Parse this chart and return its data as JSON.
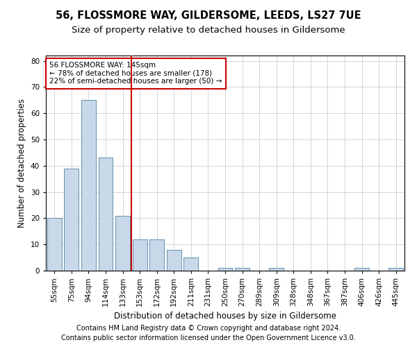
{
  "title": "56, FLOSSMORE WAY, GILDERSOME, LEEDS, LS27 7UE",
  "subtitle": "Size of property relative to detached houses in Gildersome",
  "xlabel": "Distribution of detached houses by size in Gildersome",
  "ylabel": "Number of detached properties",
  "categories": [
    "55sqm",
    "75sqm",
    "94sqm",
    "114sqm",
    "133sqm",
    "153sqm",
    "172sqm",
    "192sqm",
    "211sqm",
    "231sqm",
    "250sqm",
    "270sqm",
    "289sqm",
    "309sqm",
    "328sqm",
    "348sqm",
    "367sqm",
    "387sqm",
    "406sqm",
    "426sqm",
    "445sqm"
  ],
  "values": [
    20,
    39,
    65,
    43,
    21,
    12,
    12,
    8,
    5,
    0,
    1,
    1,
    0,
    1,
    0,
    0,
    0,
    0,
    1,
    0,
    1
  ],
  "bar_color": "#c8d8e8",
  "bar_edge_color": "#6090b0",
  "vline_x_index": 4.5,
  "vline_color": "#cc0000",
  "ylim": [
    0,
    82
  ],
  "yticks": [
    0,
    10,
    20,
    30,
    40,
    50,
    60,
    70,
    80
  ],
  "annotation_line1": "56 FLOSSMORE WAY: 145sqm",
  "annotation_line2": "← 78% of detached houses are smaller (178)",
  "annotation_line3": "22% of semi-detached houses are larger (50) →",
  "annotation_box_color": "#cc0000",
  "footer_line1": "Contains HM Land Registry data © Crown copyright and database right 2024.",
  "footer_line2": "Contains public sector information licensed under the Open Government Licence v3.0.",
  "background_color": "#ffffff",
  "grid_color": "#c8d0d8",
  "title_fontsize": 10.5,
  "subtitle_fontsize": 9.5,
  "axis_label_fontsize": 8.5,
  "tick_fontsize": 7.5,
  "annotation_fontsize": 7.5,
  "footer_fontsize": 7
}
